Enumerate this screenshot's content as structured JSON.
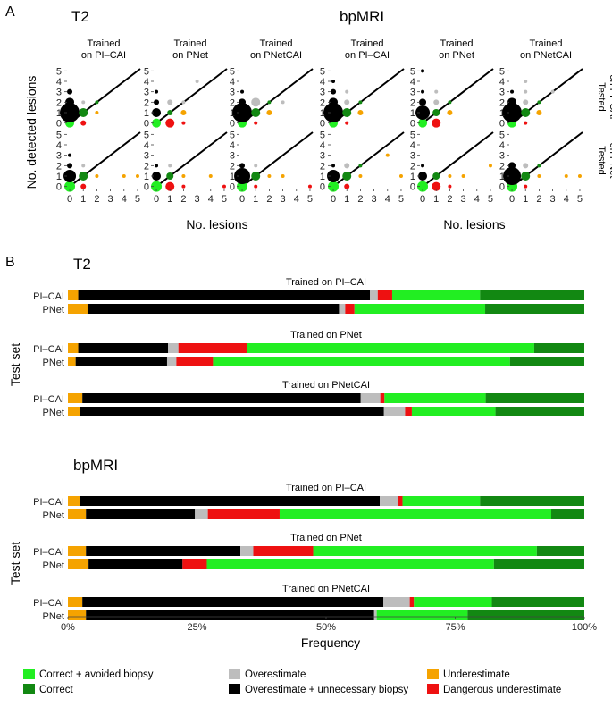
{
  "panel_a": {
    "letter": "A",
    "sections": [
      "T2",
      "bpMRI"
    ],
    "columns": [
      "Trained\non PI–CAI",
      "Trained\non PNet",
      "Trained\non PNetCAI"
    ],
    "rows": [
      "Tested\non PI–CAI",
      "Tested\non PNet"
    ],
    "ylabel": "No. detected lesions",
    "xlabel": "No. lesions",
    "ticks": [
      "0",
      "1",
      "2",
      "3",
      "4",
      "5"
    ]
  },
  "panel_b": {
    "letter": "B",
    "sections": [
      "T2",
      "bpMRI"
    ],
    "ylabel": "Test set",
    "xlabel": "Frequency",
    "test_sets": [
      "PI–CAI",
      "PNet"
    ],
    "group_titles": [
      "Trained on PI–CAI",
      "Trained on PNet",
      "Trained on PNetCAI"
    ],
    "x_ticks": [
      "0%",
      "25%",
      "50%",
      "75%",
      "100%"
    ]
  },
  "legend": [
    {
      "label": "Correct + avoided biopsy",
      "color": "#22ee22"
    },
    {
      "label": "Correct",
      "color": "#128812"
    },
    {
      "label": "Overestimate",
      "color": "#bdbdbd"
    },
    {
      "label": "Overestimate + unnecessary biopsy",
      "color": "#000000"
    },
    {
      "label": "Underestimate",
      "color": "#f5a300"
    },
    {
      "label": "Dangerous underestimate",
      "color": "#ee1111"
    }
  ],
  "chart_data": [
    {
      "type": "scatter",
      "description_key": "panel A bubble grid",
      "xlabel": "No. lesions",
      "ylabel": "No. detected lesions",
      "xlim": [
        0,
        5
      ],
      "ylim": [
        0,
        5
      ],
      "panels": [
        {
          "section": "T2",
          "train": "PI–CAI",
          "test": "PI–CAI",
          "points": [
            [
              0,
              0,
              5,
              "lg"
            ],
            [
              0,
              1,
              11,
              "k"
            ],
            [
              0,
              2,
              5,
              "k"
            ],
            [
              0,
              3,
              3,
              "k"
            ],
            [
              1,
              0,
              3,
              "r"
            ],
            [
              1,
              1,
              5,
              "g"
            ],
            [
              1,
              2,
              2,
              "s"
            ],
            [
              2,
              1,
              2,
              "o"
            ],
            [
              2,
              2,
              2,
              "g"
            ]
          ]
        },
        {
          "section": "T2",
          "train": "PNet",
          "test": "PI–CAI",
          "points": [
            [
              0,
              0,
              5,
              "lg"
            ],
            [
              0,
              1,
              5,
              "k"
            ],
            [
              0,
              2,
              3,
              "k"
            ],
            [
              0,
              3,
              2,
              "k"
            ],
            [
              1,
              0,
              5,
              "r"
            ],
            [
              1,
              1,
              3,
              "g"
            ],
            [
              1,
              2,
              3,
              "s"
            ],
            [
              2,
              0,
              2,
              "r"
            ],
            [
              2,
              1,
              3,
              "o"
            ],
            [
              2,
              2,
              2,
              "s"
            ],
            [
              3,
              4,
              2,
              "s"
            ]
          ]
        },
        {
          "section": "T2",
          "train": "PNetCAI",
          "test": "PI–CAI",
          "points": [
            [
              0,
              0,
              5,
              "lg"
            ],
            [
              0,
              1,
              11,
              "k"
            ],
            [
              0,
              2,
              4,
              "k"
            ],
            [
              0,
              3,
              2,
              "k"
            ],
            [
              1,
              0,
              2,
              "r"
            ],
            [
              1,
              1,
              5,
              "g"
            ],
            [
              1,
              2,
              5,
              "s"
            ],
            [
              2,
              1,
              3,
              "o"
            ],
            [
              2,
              2,
              2,
              "g"
            ],
            [
              3,
              2,
              2,
              "s"
            ]
          ]
        },
        {
          "section": "bpMRI",
          "train": "PI–CAI",
          "test": "PI–CAI",
          "points": [
            [
              0,
              0,
              5,
              "lg"
            ],
            [
              0,
              1,
              11,
              "k"
            ],
            [
              0,
              2,
              5,
              "k"
            ],
            [
              0,
              3,
              3,
              "k"
            ],
            [
              0,
              4,
              2,
              "k"
            ],
            [
              1,
              0,
              2,
              "r"
            ],
            [
              1,
              1,
              5,
              "g"
            ],
            [
              1,
              2,
              3,
              "s"
            ],
            [
              1,
              3,
              2,
              "s"
            ],
            [
              2,
              1,
              3,
              "o"
            ],
            [
              2,
              2,
              2,
              "g"
            ]
          ]
        },
        {
          "section": "bpMRI",
          "train": "PNet",
          "test": "PI–CAI",
          "points": [
            [
              0,
              0,
              5,
              "lg"
            ],
            [
              0,
              1,
              8,
              "k"
            ],
            [
              0,
              2,
              4,
              "k"
            ],
            [
              0,
              3,
              2,
              "k"
            ],
            [
              0,
              5,
              2,
              "k"
            ],
            [
              1,
              0,
              5,
              "r"
            ],
            [
              1,
              1,
              4,
              "g"
            ],
            [
              1,
              2,
              3,
              "s"
            ],
            [
              1,
              3,
              2,
              "s"
            ],
            [
              2,
              1,
              3,
              "o"
            ],
            [
              2,
              2,
              2,
              "g"
            ]
          ]
        },
        {
          "section": "bpMRI",
          "train": "PNetCAI",
          "test": "PI–CAI",
          "points": [
            [
              0,
              0,
              5,
              "lg"
            ],
            [
              0,
              1,
              11,
              "k"
            ],
            [
              0,
              2,
              5,
              "k"
            ],
            [
              0,
              3,
              2,
              "k"
            ],
            [
              1,
              0,
              2,
              "r"
            ],
            [
              1,
              1,
              5,
              "g"
            ],
            [
              1,
              2,
              3,
              "s"
            ],
            [
              1,
              3,
              2,
              "s"
            ],
            [
              1,
              4,
              2,
              "s"
            ],
            [
              2,
              1,
              3,
              "o"
            ],
            [
              2,
              2,
              2,
              "g"
            ],
            [
              3,
              3,
              2,
              "s"
            ]
          ]
        },
        {
          "section": "T2",
          "train": "PI–CAI",
          "test": "PNet",
          "points": [
            [
              0,
              0,
              6,
              "lg"
            ],
            [
              0,
              1,
              7,
              "k"
            ],
            [
              0,
              2,
              3,
              "k"
            ],
            [
              0,
              3,
              2,
              "k"
            ],
            [
              1,
              0,
              3,
              "r"
            ],
            [
              1,
              1,
              5,
              "g"
            ],
            [
              1,
              2,
              2,
              "s"
            ],
            [
              2,
              1,
              2,
              "o"
            ],
            [
              4,
              1,
              2,
              "o"
            ],
            [
              5,
              1,
              2,
              "o"
            ]
          ]
        },
        {
          "section": "T2",
          "train": "PNet",
          "test": "PNet",
          "points": [
            [
              0,
              0,
              6,
              "lg"
            ],
            [
              0,
              1,
              5,
              "k"
            ],
            [
              0,
              2,
              2,
              "k"
            ],
            [
              1,
              0,
              5,
              "r"
            ],
            [
              1,
              1,
              4,
              "g"
            ],
            [
              1,
              2,
              2,
              "s"
            ],
            [
              2,
              0,
              2,
              "r"
            ],
            [
              2,
              1,
              2,
              "o"
            ],
            [
              4,
              1,
              2,
              "o"
            ],
            [
              5,
              0,
              2,
              "r"
            ]
          ]
        },
        {
          "section": "T2",
          "train": "PNetCAI",
          "test": "PNet",
          "points": [
            [
              0,
              0,
              6,
              "lg"
            ],
            [
              0,
              1,
              9,
              "k"
            ],
            [
              0,
              2,
              3,
              "k"
            ],
            [
              1,
              0,
              2,
              "r"
            ],
            [
              1,
              1,
              5,
              "g"
            ],
            [
              1,
              2,
              2,
              "s"
            ],
            [
              2,
              1,
              2,
              "o"
            ],
            [
              3,
              1,
              2,
              "o"
            ],
            [
              5,
              0,
              2,
              "r"
            ]
          ]
        },
        {
          "section": "bpMRI",
          "train": "PI–CAI",
          "test": "PNet",
          "points": [
            [
              0,
              0,
              6,
              "lg"
            ],
            [
              0,
              1,
              7,
              "k"
            ],
            [
              0,
              2,
              2,
              "k"
            ],
            [
              1,
              0,
              3,
              "r"
            ],
            [
              1,
              1,
              5,
              "g"
            ],
            [
              1,
              2,
              3,
              "s"
            ],
            [
              2,
              1,
              2,
              "o"
            ],
            [
              2,
              2,
              2,
              "g"
            ],
            [
              4,
              3,
              2,
              "o"
            ],
            [
              5,
              1,
              2,
              "o"
            ]
          ]
        },
        {
          "section": "bpMRI",
          "train": "PNet",
          "test": "PNet",
          "points": [
            [
              0,
              0,
              6,
              "lg"
            ],
            [
              0,
              1,
              5,
              "k"
            ],
            [
              0,
              2,
              2,
              "k"
            ],
            [
              1,
              0,
              5,
              "r"
            ],
            [
              1,
              1,
              4,
              "g"
            ],
            [
              2,
              0,
              2,
              "r"
            ],
            [
              2,
              1,
              2,
              "o"
            ],
            [
              3,
              1,
              2,
              "o"
            ],
            [
              5,
              2,
              2,
              "o"
            ]
          ]
        },
        {
          "section": "bpMRI",
          "train": "PNetCAI",
          "test": "PNet",
          "points": [
            [
              0,
              0,
              6,
              "lg"
            ],
            [
              0,
              1,
              10,
              "k"
            ],
            [
              0,
              2,
              4,
              "k"
            ],
            [
              1,
              0,
              2,
              "r"
            ],
            [
              1,
              1,
              5,
              "g"
            ],
            [
              1,
              2,
              3,
              "s"
            ],
            [
              2,
              1,
              2,
              "o"
            ],
            [
              2,
              2,
              2,
              "g"
            ],
            [
              4,
              1,
              2,
              "o"
            ],
            [
              5,
              1,
              2,
              "o"
            ]
          ]
        }
      ]
    },
    {
      "type": "bar",
      "stacked": true,
      "orientation": "horizontal",
      "xlabel": "Frequency",
      "ylabel": "Test set",
      "xlim": [
        0,
        100
      ],
      "segment_order": [
        "Underestimate",
        "Overestimate + unnecessary biopsy",
        "Overestimate",
        "Dangerous underestimate",
        "Correct + avoided biopsy",
        "Correct"
      ],
      "groups": [
        {
          "section": "T2",
          "title": "Trained on PI–CAI",
          "bars": [
            {
              "test": "PI–CAI",
              "values": [
                2.0,
                56.5,
                1.5,
                2.8,
                17.0,
                20.2
              ]
            },
            {
              "test": "PNet",
              "values": [
                3.8,
                48.7,
                1.2,
                1.8,
                25.3,
                19.2
              ]
            }
          ]
        },
        {
          "section": "T2",
          "title": "Trained on PNet",
          "bars": [
            {
              "test": "PI–CAI",
              "values": [
                2.0,
                17.4,
                2.0,
                13.2,
                55.7,
                9.7
              ]
            },
            {
              "test": "PNet",
              "values": [
                1.5,
                17.7,
                1.8,
                7.1,
                57.5,
                14.4
              ]
            }
          ]
        },
        {
          "section": "T2",
          "title": "Trained on PNetCAI",
          "bars": [
            {
              "test": "PI–CAI",
              "values": [
                2.8,
                53.9,
                3.8,
                0.8,
                19.6,
                19.1
              ]
            },
            {
              "test": "PNet",
              "values": [
                2.3,
                58.9,
                4.1,
                1.3,
                16.2,
                17.2
              ]
            }
          ]
        },
        {
          "section": "bpMRI",
          "title": "Trained on PI–CAI",
          "bars": [
            {
              "test": "PI–CAI",
              "values": [
                2.3,
                58.1,
                3.6,
                0.8,
                15.0,
                20.2
              ]
            },
            {
              "test": "PNet",
              "values": [
                3.5,
                21.1,
                2.5,
                13.9,
                52.6,
                6.4
              ]
            }
          ]
        },
        {
          "section": "bpMRI",
          "title": "Trained on PNet",
          "bars": [
            {
              "test": "PI–CAI",
              "values": [
                3.5,
                29.9,
                2.5,
                11.6,
                43.3,
                9.2
              ]
            },
            {
              "test": "PNet",
              "values": [
                4.0,
                18.2,
                0.0,
                4.7,
                55.6,
                17.5
              ]
            }
          ]
        },
        {
          "section": "bpMRI",
          "title": "Trained on PNetCAI",
          "bars": [
            {
              "test": "PI–CAI",
              "values": [
                2.8,
                58.3,
                5.1,
                0.8,
                15.1,
                17.9
              ]
            },
            {
              "test": "PNet",
              "values": [
                3.5,
                55.8,
                0.5,
                0.0,
                17.6,
                22.6
              ]
            }
          ]
        }
      ]
    }
  ]
}
